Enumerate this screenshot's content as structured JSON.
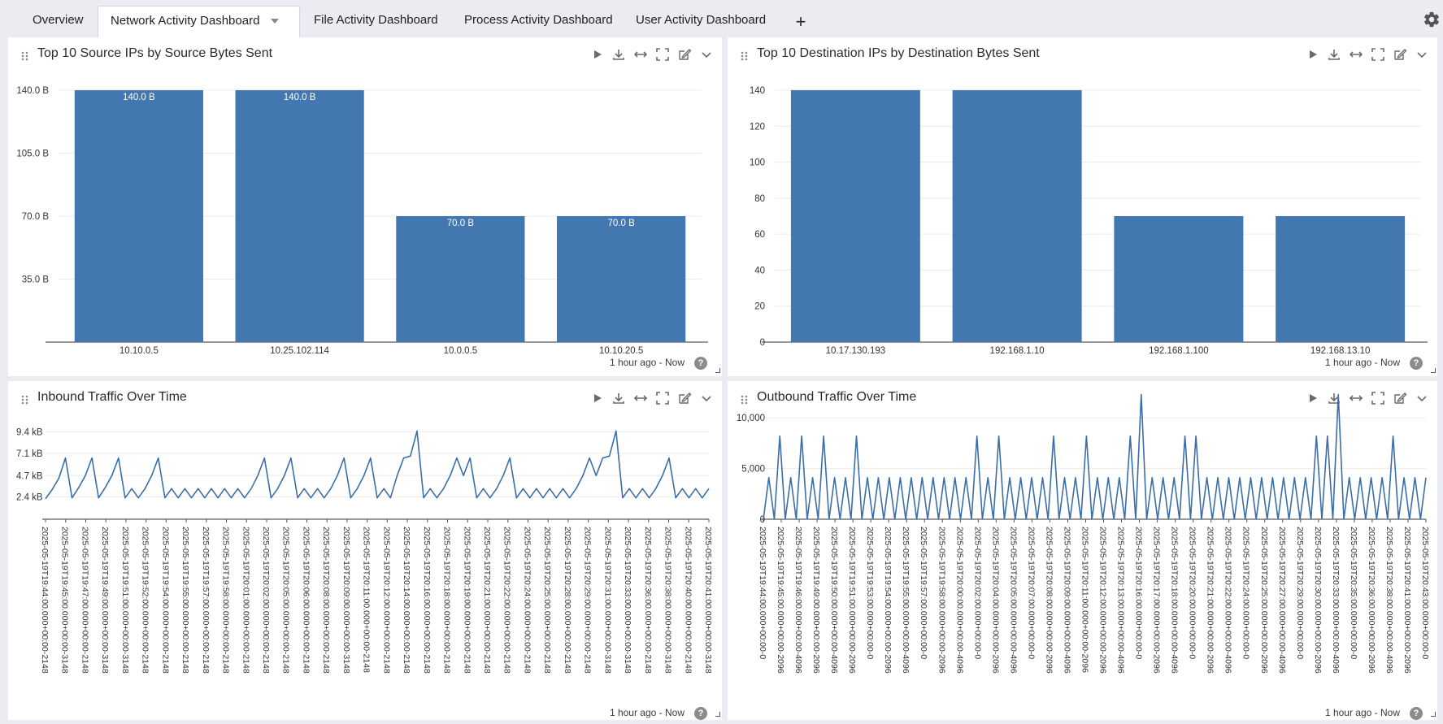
{
  "tabs": [
    {
      "label": "Overview",
      "active": false
    },
    {
      "label": "Network Activity Dashboard",
      "active": true
    },
    {
      "label": "File Activity Dashboard",
      "active": false
    },
    {
      "label": "Process Activity Dashboard",
      "active": false
    },
    {
      "label": "User Activity Dashboard",
      "active": false
    }
  ],
  "add_tab_label": "+",
  "icons": {
    "drag": "drag-handle-icon",
    "tools": [
      "play-icon",
      "download-icon",
      "expand-horizontal-icon",
      "fullscreen-icon",
      "edit-icon",
      "chevron-down-icon"
    ],
    "settings": "gear-icon",
    "help": "help-icon"
  },
  "colors": {
    "bar": "#4277b0",
    "line": "#3b6ea8",
    "page_bg": "#ebebf2"
  },
  "panels": [
    {
      "title": "Top 10 Source IPs by Source Bytes Sent",
      "footer": "1 hour ago - Now",
      "help": "?"
    },
    {
      "title": "Top 10 Destination IPs by Destination Bytes Sent",
      "footer": "1 hour ago - Now",
      "help": "?"
    },
    {
      "title": "Inbound Traffic Over Time",
      "footer": "1 hour ago - Now",
      "help": "?"
    },
    {
      "title": "Outbound Traffic Over Time",
      "footer": "1 hour ago - Now",
      "help": "?"
    }
  ],
  "chart_data": [
    {
      "type": "bar",
      "categories": [
        "10.10.0.5",
        "10.25.102.114",
        "10.0.0.5",
        "10.10.20.5"
      ],
      "values": [
        140,
        140,
        70,
        70
      ],
      "data_labels": [
        "140.0 B",
        "140.0 B",
        "70.0 B",
        "70.0 B"
      ],
      "yticks": [
        35,
        70,
        105,
        140
      ],
      "ytick_labels": [
        "35.0 B",
        "70.0 B",
        "105.0 B",
        "140.0 B"
      ],
      "ylim": [
        0,
        140
      ],
      "grid": true,
      "legend": "none"
    },
    {
      "type": "bar",
      "categories": [
        "10.17.130.193",
        "192.168.1.10",
        "192.168.1.100",
        "192.168.13.10"
      ],
      "values": [
        140,
        140,
        70,
        70
      ],
      "yticks": [
        0,
        20,
        40,
        60,
        80,
        100,
        120,
        140
      ],
      "ytick_labels": [
        "0",
        "20",
        "40",
        "60",
        "80",
        "100",
        "120",
        "140"
      ],
      "ylim": [
        0,
        140
      ],
      "grid": true,
      "legend": "none"
    },
    {
      "type": "line",
      "x_tick_labels": [
        "2025-05-19T19:44:00.000+00:00-2148",
        "2025-05-19T19:45:00.000+00:00-3148",
        "2025-05-19T19:47:00.000+00:00-2148",
        "2025-05-19T19:49:00.000+00:00-3148",
        "2025-05-19T19:51:00.000+00:00-3148",
        "2025-05-19T19:52:00.000+00:00-2148",
        "2025-05-19T19:54:00.000+00:00-2148",
        "2025-05-19T19:55:00.000+00:00-2148",
        "2025-05-19T19:57:00.000+00:00-2148",
        "2025-05-19T19:58:00.000+00:00-2148",
        "2025-05-19T20:01:00.000+00:00-2148",
        "2025-05-19T20:02:00.000+00:00-2148",
        "2025-05-19T20:05:00.000+00:00-2148",
        "2025-05-19T20:06:00.000+00:00-2148",
        "2025-05-19T20:08:00.000+00:00-2148",
        "2025-05-19T20:09:00.000+00:00-3148",
        "2025-05-19T20:11:00.000+00:00-2148",
        "2025-05-19T20:12:00.000+00:00-2148",
        "2025-05-19T20:14:00.000+00:00-2148",
        "2025-05-19T20:16:00.000+00:00-2148",
        "2025-05-19T20:18:00.000+00:00-2148",
        "2025-05-19T20:19:00.000+00:00-2148",
        "2025-05-19T20:21:00.000+00:00-2148",
        "2025-05-19T20:22:00.000+00:00-2148",
        "2025-05-19T20:24:00.000+00:00-2148",
        "2025-05-19T20:25:00.000+00:00-2148",
        "2025-05-19T20:28:00.000+00:00-2148",
        "2025-05-19T20:29:00.000+00:00-2148",
        "2025-05-19T20:31:00.000+00:00-3148",
        "2025-05-19T20:33:00.000+00:00-3148",
        "2025-05-19T20:36:00.000+00:00-2148",
        "2025-05-19T20:38:00.000+00:00-3148",
        "2025-05-19T20:40:00.000+00:00-2148",
        "2025-05-19T20:41:00.000+00:00-3148"
      ],
      "values": [
        2200,
        3200,
        4400,
        6600,
        2300,
        3400,
        4700,
        6600,
        2300,
        3400,
        4700,
        6600,
        2300,
        3300,
        2300,
        3300,
        4700,
        6600,
        2300,
        3300,
        2300,
        3300,
        2300,
        3300,
        2300,
        3300,
        2300,
        3300,
        2300,
        3300,
        2300,
        3300,
        4700,
        6600,
        2300,
        3300,
        4700,
        6600,
        2300,
        3300,
        2300,
        3300,
        2300,
        3300,
        4700,
        6600,
        2300,
        3300,
        4700,
        6600,
        2300,
        3300,
        2300,
        4700,
        6600,
        6800,
        9500,
        2300,
        3300,
        2300,
        3300,
        4700,
        6600,
        4700,
        6600,
        2300,
        3300,
        2300,
        3300,
        4700,
        6600,
        2300,
        3300,
        2300,
        3300,
        2300,
        3300,
        2300,
        3300,
        2300,
        3300,
        4700,
        6600,
        4700,
        6600,
        6800,
        9500,
        2300,
        3300,
        2300,
        3300,
        2300,
        3300,
        4700,
        6600,
        2300,
        3300,
        2300,
        3300,
        2300,
        3300
      ],
      "yticks": [
        2400,
        4700,
        7100,
        9400
      ],
      "ytick_labels": [
        "2.4 kB",
        "4.7 kB",
        "7.1 kB",
        "9.4 kB"
      ],
      "ylim": [
        0,
        9800
      ],
      "grid": true,
      "legend": "none"
    },
    {
      "type": "line",
      "x_tick_labels": [
        "2025-05-19T19:44:00.000+00:00-0",
        "2025-05-19T19:45:00.000+00:00-2096",
        "2025-05-19T19:46:00.000+00:00-4096",
        "2025-05-19T19:49:00.000+00:00-2096",
        "2025-05-19T19:50:00.000+00:00-4096",
        "2025-05-19T19:51:00.000+00:00-2096",
        "2025-05-19T19:53:00.000+00:00-0",
        "2025-05-19T19:54:00.000+00:00-2096",
        "2025-05-19T19:55:00.000+00:00-4096",
        "2025-05-19T19:57:00.000+00:00-0",
        "2025-05-19T19:58:00.000+00:00-2096",
        "2025-05-19T20:00:00.000+00:00-4096",
        "2025-05-19T20:02:00.000+00:00-0",
        "2025-05-19T20:04:00.000+00:00-2096",
        "2025-05-19T20:05:00.000+00:00-4096",
        "2025-05-19T20:07:00.000+00:00-0",
        "2025-05-19T20:08:00.000+00:00-2096",
        "2025-05-19T20:09:00.000+00:00-4096",
        "2025-05-19T20:11:00.000+00:00-2096",
        "2025-05-19T20:12:00.000+00:00-2096",
        "2025-05-19T20:13:00.000+00:00-4096",
        "2025-05-19T20:16:00.000+00:00-0",
        "2025-05-19T20:17:00.000+00:00-2096",
        "2025-05-19T20:18:00.000+00:00-4096",
        "2025-05-19T20:20:00.000+00:00-0",
        "2025-05-19T20:21:00.000+00:00-2096",
        "2025-05-19T20:22:00.000+00:00-4096",
        "2025-05-19T20:24:00.000+00:00-0",
        "2025-05-19T20:25:00.000+00:00-2096",
        "2025-05-19T20:27:00.000+00:00-4096",
        "2025-05-19T20:29:00.000+00:00-0",
        "2025-05-19T20:30:00.000+00:00-2096",
        "2025-05-19T20:33:00.000+00:00-4096",
        "2025-05-19T20:35:00.000+00:00-0",
        "2025-05-19T20:36:00.000+00:00-2096",
        "2025-05-19T20:38:00.000+00:00-4096",
        "2025-05-19T20:41:00.000+00:00-2096",
        "2025-05-19T20:43:00.000+00:00-0"
      ],
      "values": [
        0,
        4100,
        0,
        8200,
        0,
        4100,
        0,
        8200,
        0,
        4100,
        0,
        8200,
        0,
        4100,
        0,
        4100,
        0,
        8200,
        0,
        4100,
        0,
        4100,
        0,
        4100,
        0,
        4100,
        0,
        4100,
        0,
        4100,
        0,
        4100,
        0,
        4100,
        0,
        4100,
        0,
        4100,
        0,
        8200,
        0,
        4100,
        0,
        8200,
        0,
        4100,
        0,
        4100,
        0,
        4100,
        0,
        4100,
        0,
        8200,
        0,
        4100,
        0,
        4100,
        0,
        8200,
        0,
        4100,
        0,
        4100,
        0,
        4100,
        0,
        8200,
        0,
        12300,
        0,
        4100,
        0,
        4100,
        0,
        4100,
        0,
        8200,
        0,
        8200,
        0,
        4100,
        0,
        4100,
        0,
        4100,
        0,
        4100,
        0,
        4100,
        0,
        4100,
        0,
        4100,
        0,
        4100,
        0,
        4100,
        0,
        4100,
        0,
        8200,
        0,
        8200,
        0,
        12300,
        0,
        4100,
        0,
        4100,
        0,
        4100,
        0,
        4100,
        0,
        8200,
        0,
        4100,
        0,
        4100,
        0,
        4100
      ],
      "yticks": [
        0,
        5000,
        10000
      ],
      "ytick_labels": [
        "0",
        "5,000",
        "10,000"
      ],
      "ylim": [
        0,
        12500
      ],
      "grid": true,
      "legend": "none"
    }
  ]
}
